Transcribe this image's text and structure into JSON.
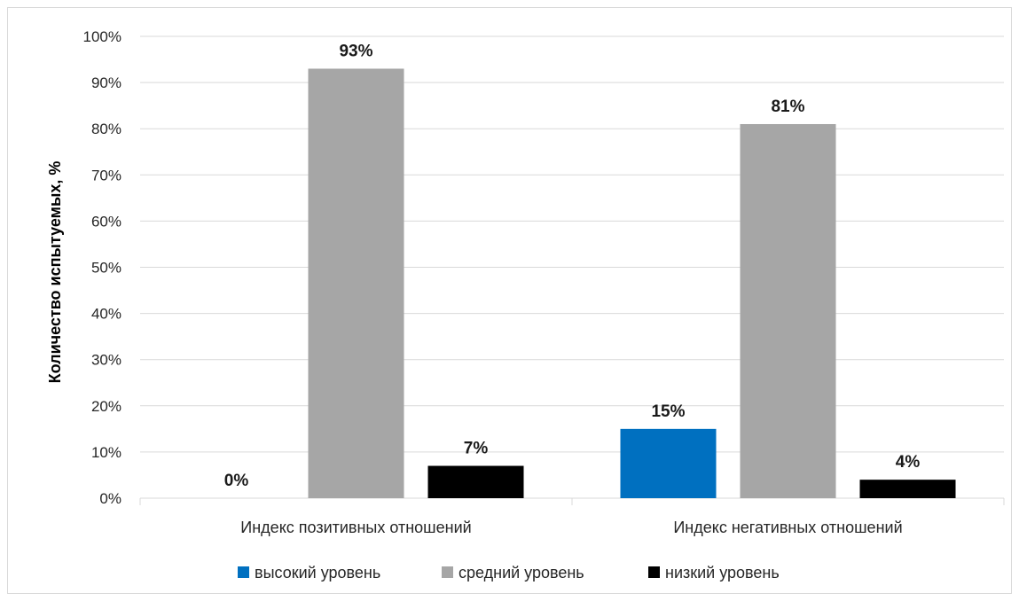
{
  "chart_data": {
    "type": "bar",
    "categories": [
      "Индекс позитивных  отношений",
      "Индекс негативных отношений"
    ],
    "series": [
      {
        "name": "высокий уровень",
        "color": "#0070C0",
        "values": [
          0,
          15
        ],
        "labels": [
          "0%",
          "15%"
        ]
      },
      {
        "name": "средний уровень",
        "color": "#A6A6A6",
        "values": [
          93,
          81
        ],
        "labels": [
          "93%",
          "81%"
        ]
      },
      {
        "name": "низкий уровень",
        "color": "#000000",
        "values": [
          7,
          4
        ],
        "labels": [
          "7%",
          "4%"
        ]
      }
    ],
    "title": "",
    "xlabel": "",
    "ylabel": "Количество испытуемых, %",
    "ylim": [
      0,
      100
    ],
    "yticks": [
      0,
      10,
      20,
      30,
      40,
      50,
      60,
      70,
      80,
      90,
      100
    ],
    "ytick_labels": [
      "0%",
      "10%",
      "20%",
      "30%",
      "40%",
      "50%",
      "60%",
      "70%",
      "80%",
      "90%",
      "100%"
    ],
    "grid": true,
    "legend_position": "bottom",
    "gridline_color": "#D9D9D9"
  }
}
